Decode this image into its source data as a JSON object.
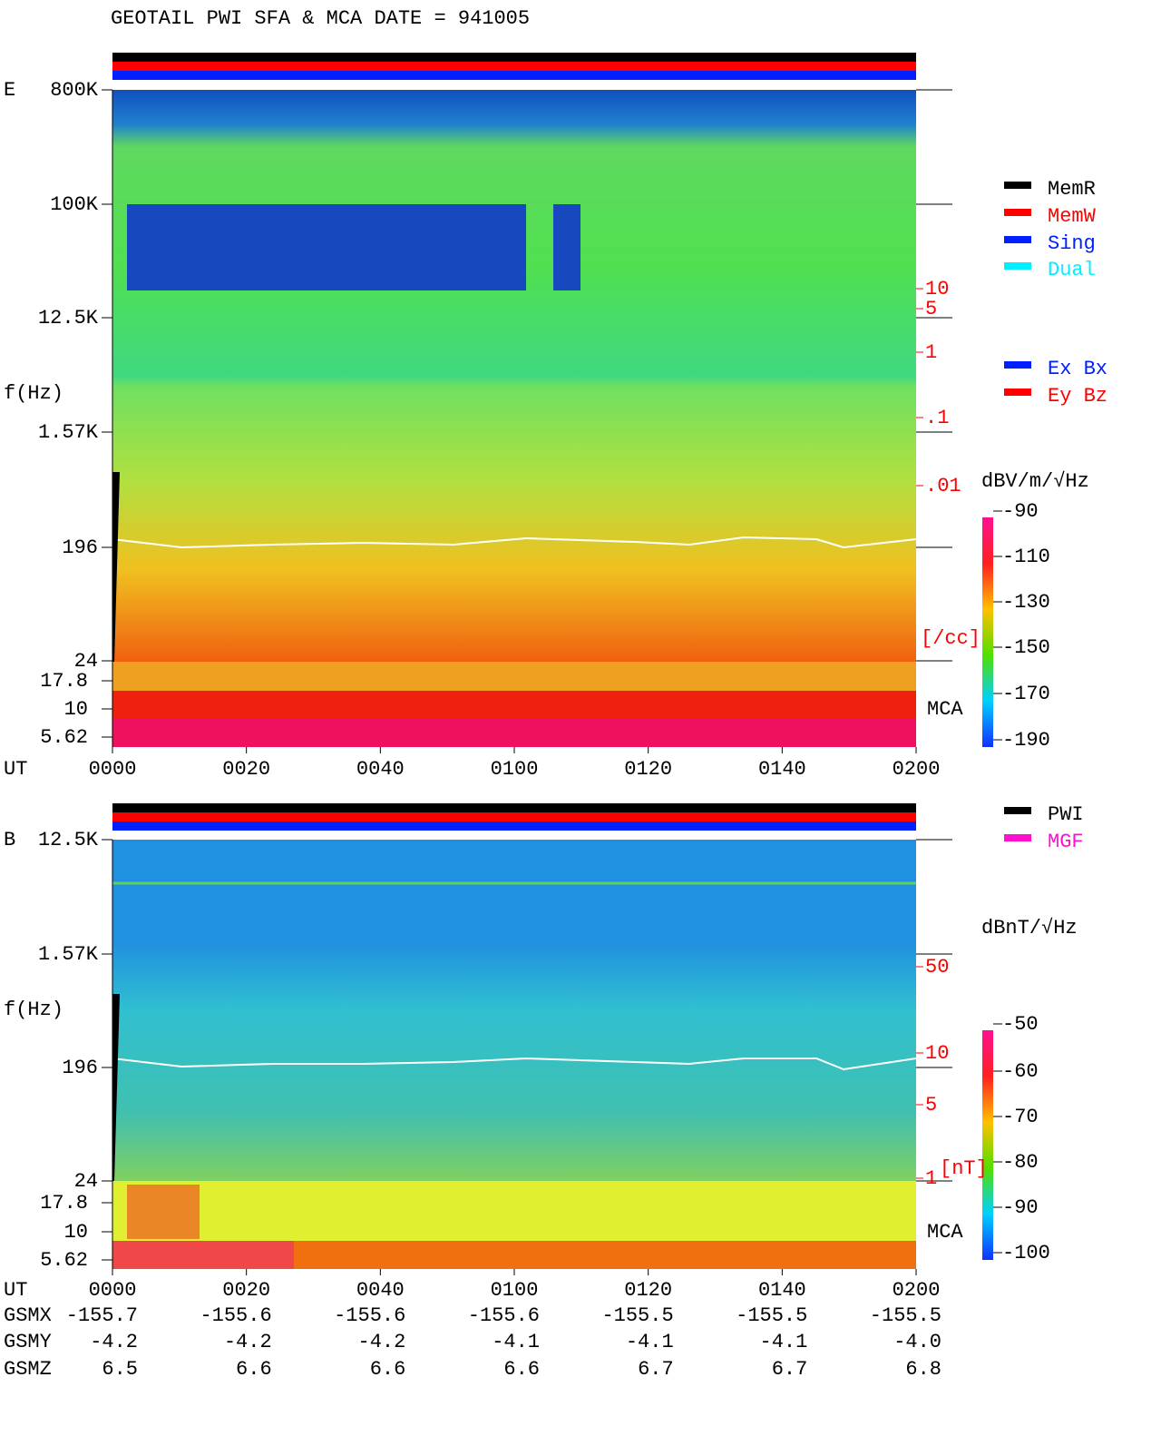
{
  "title": "GEOTAIL  PWI SFA & MCA   DATE = 941005",
  "panel_e": {
    "label": "E",
    "y_axis_label": "f(Hz)",
    "freq_ticks": [
      "800K",
      "100K",
      "12.5K",
      "1.57K",
      "196",
      "24"
    ],
    "mca_ticks": [
      "17.8",
      "10",
      "5.62"
    ],
    "mca_label": "MCA",
    "density_ticks": [
      "10",
      "5",
      "1",
      ".1",
      ".01"
    ],
    "density_unit": "[/cc]",
    "colorbar_unit": "dBV/m/√Hz",
    "colorbar_ticks": [
      "-90",
      "-110",
      "-130",
      "-150",
      "-170",
      "-190"
    ],
    "time_label": "UT",
    "time_ticks": [
      "0000",
      "0020",
      "0040",
      "0100",
      "0120",
      "0140",
      "0200"
    ]
  },
  "legend_memory": [
    "MemR",
    "MemW",
    "Sing",
    "Dual"
  ],
  "legend_sensor": [
    "Ex Bx",
    "Ey Bz"
  ],
  "panel_b": {
    "label": "B",
    "y_axis_label": "f(Hz)",
    "freq_ticks": [
      "12.5K",
      "1.57K",
      "196",
      "24"
    ],
    "mca_ticks": [
      "17.8",
      "10",
      "5.62"
    ],
    "mca_label": "MCA",
    "field_ticks": [
      "50",
      "10",
      "5",
      "1"
    ],
    "field_unit": "[nT]",
    "colorbar_unit": "dBnT/√Hz",
    "colorbar_ticks": [
      "-50",
      "-60",
      "-70",
      "-80",
      "-90",
      "-100"
    ]
  },
  "legend_source": [
    "PWI",
    "MGF"
  ],
  "orbit": {
    "labels": [
      "UT",
      "GSMX",
      "GSMY",
      "GSMZ"
    ],
    "ut": [
      "0000",
      "0020",
      "0040",
      "0100",
      "0120",
      "0140",
      "0200"
    ],
    "gsmx": [
      "-155.7",
      "-155.6",
      "-155.6",
      "-155.6",
      "-155.5",
      "-155.5",
      "-155.5"
    ],
    "gsmy": [
      "-4.2",
      "-4.2",
      "-4.2",
      "-4.1",
      "-4.1",
      "-4.1",
      "-4.0"
    ],
    "gsmz": [
      "6.5",
      "6.6",
      "6.6",
      "6.6",
      "6.7",
      "6.7",
      "6.8"
    ]
  }
}
